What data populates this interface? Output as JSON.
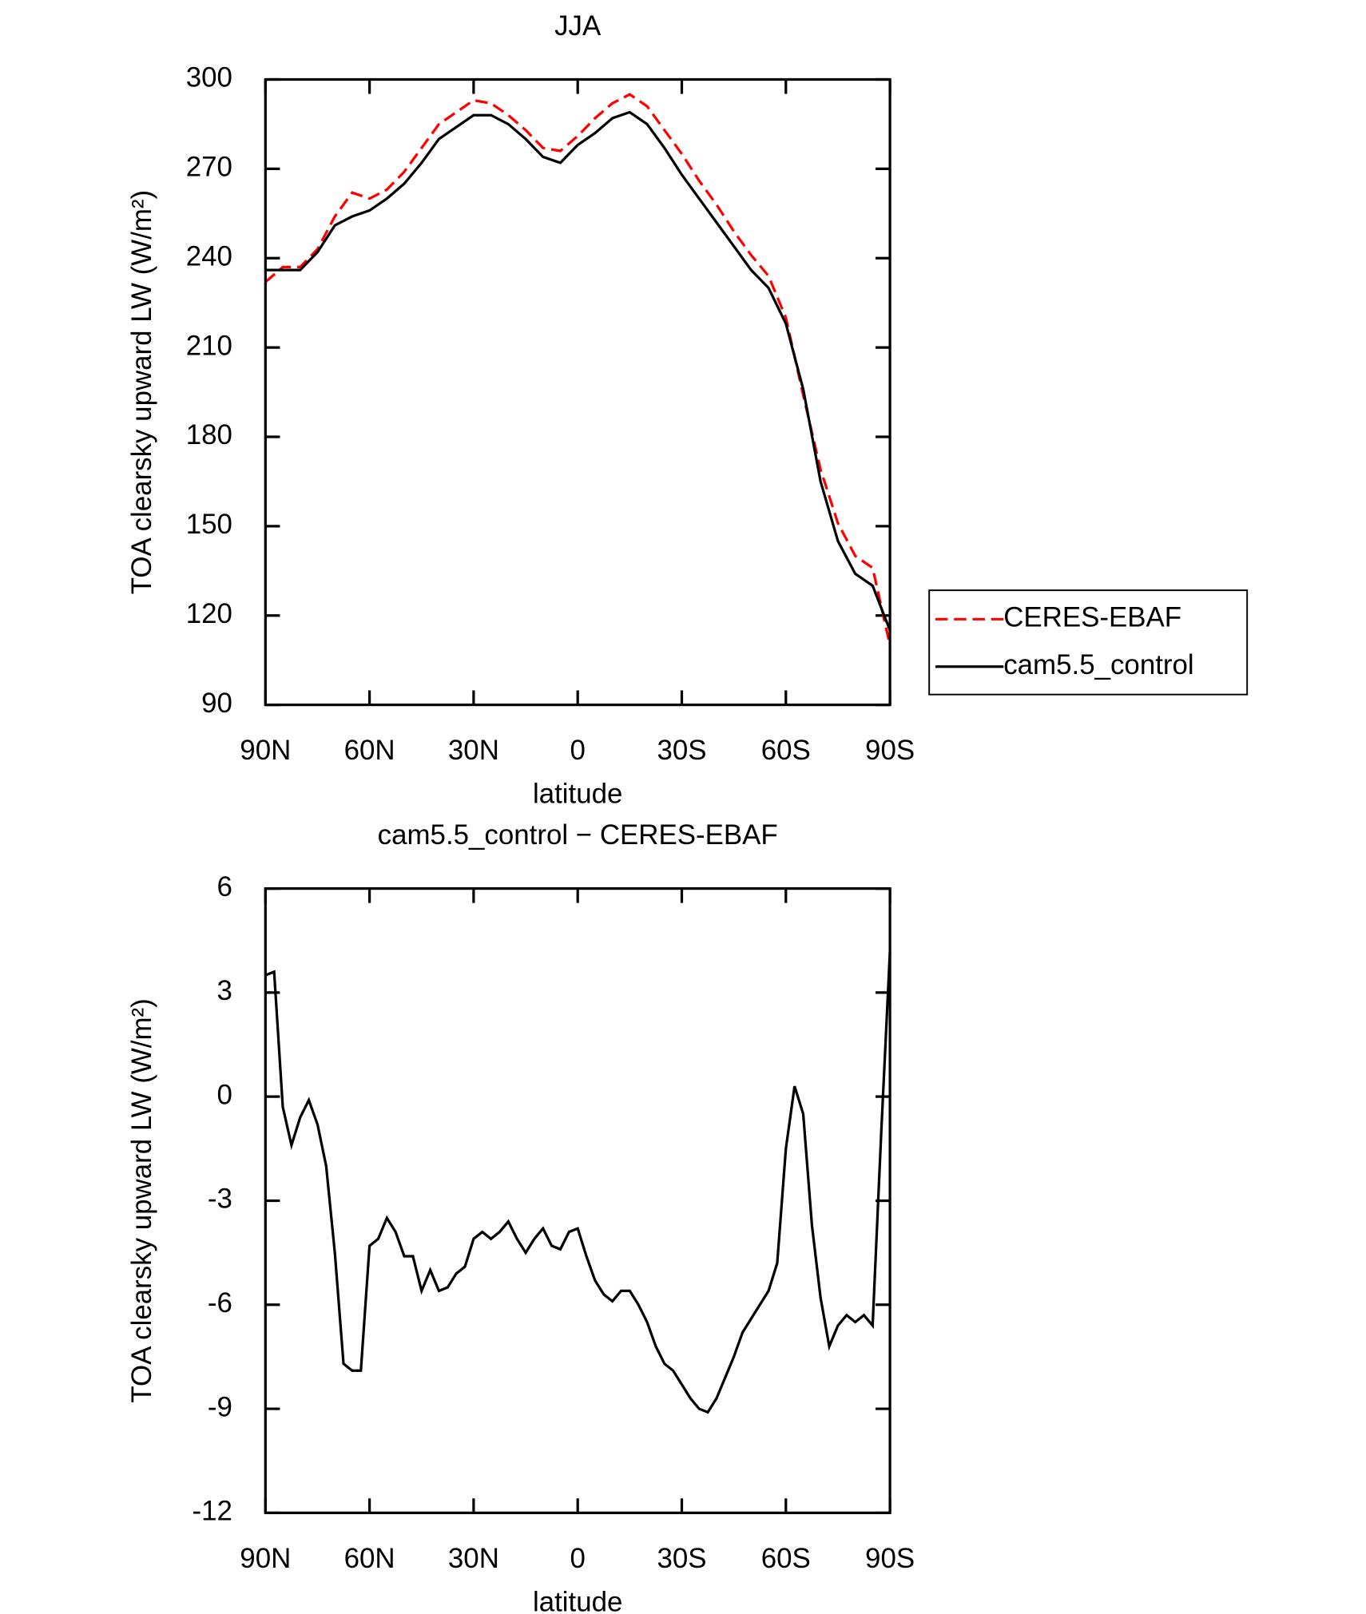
{
  "chart_data": [
    {
      "type": "line",
      "title": "JJA",
      "xlabel": "latitude",
      "ylabel": "TOA clearsky upward LW (W/m²)",
      "x": [
        90,
        85,
        80,
        75,
        70,
        65,
        60,
        55,
        50,
        45,
        40,
        35,
        30,
        25,
        20,
        15,
        10,
        5,
        0,
        -5,
        -10,
        -15,
        -20,
        -25,
        -30,
        -35,
        -40,
        -45,
        -50,
        -55,
        -60,
        -65,
        -70,
        -75,
        -80,
        -85,
        -90
      ],
      "series": [
        {
          "name": "CERES-EBAF",
          "color": "#ff0000",
          "dashed": true,
          "values": [
            232,
            237,
            237,
            243,
            254,
            262,
            260,
            263,
            269,
            277,
            285,
            289,
            293,
            292,
            288,
            283,
            277,
            276,
            281,
            287,
            292,
            295,
            291,
            283,
            275,
            266,
            258,
            249,
            241,
            234,
            220,
            194,
            169,
            151,
            140,
            136,
            110
          ]
        },
        {
          "name": "cam5.5_control",
          "color": "#000000",
          "dashed": false,
          "values": [
            236,
            236,
            236,
            242,
            251,
            254,
            256,
            260,
            265,
            272,
            280,
            284,
            288,
            288,
            285,
            280,
            274,
            272,
            278,
            282,
            287,
            289,
            285,
            277,
            268,
            260,
            252,
            244,
            236,
            230,
            218,
            196,
            165,
            145,
            134,
            130,
            115
          ]
        }
      ],
      "xlim": [
        90,
        -90
      ],
      "xticks": [
        {
          "value": 90,
          "label": "90N"
        },
        {
          "value": 60,
          "label": "60N"
        },
        {
          "value": 30,
          "label": "30N"
        },
        0,
        {
          "value": -30,
          "label": "30S"
        },
        {
          "value": -60,
          "label": "60S"
        },
        {
          "value": -90,
          "label": "90S"
        }
      ],
      "ylim": [
        90,
        300
      ],
      "yticks": [
        90,
        120,
        150,
        180,
        210,
        240,
        270,
        300
      ],
      "legend": "right"
    },
    {
      "type": "line",
      "title": "cam5.5_control − CERES-EBAF",
      "xlabel": "latitude",
      "ylabel": "TOA clearsky upward LW (W/m²)",
      "x": [
        90,
        87.5,
        85,
        82.5,
        80,
        77.5,
        75,
        72.5,
        70,
        67.5,
        65,
        62.5,
        60,
        57.5,
        55,
        52.5,
        50,
        47.5,
        45,
        42.5,
        40,
        37.5,
        35,
        32.5,
        30,
        27.5,
        25,
        22.5,
        20,
        17.5,
        15,
        12.5,
        10,
        7.5,
        5,
        2.5,
        0,
        -2.5,
        -5,
        -7.5,
        -10,
        -12.5,
        -15,
        -17.5,
        -20,
        -22.5,
        -25,
        -27.5,
        -30,
        -32.5,
        -35,
        -37.5,
        -40,
        -42.5,
        -45,
        -47.5,
        -50,
        -52.5,
        -55,
        -57.5,
        -60,
        -62.5,
        -65,
        -67.5,
        -70,
        -72.5,
        -75,
        -77.5,
        -80,
        -82.5,
        -85,
        -87.5,
        -90
      ],
      "color": "#000000",
      "values": [
        3.5,
        3.6,
        -0.3,
        -1.4,
        -0.6,
        -0.1,
        -0.8,
        -2.0,
        -4.5,
        -7.7,
        -7.9,
        -7.9,
        -4.3,
        -4.1,
        -3.5,
        -3.9,
        -4.6,
        -4.6,
        -5.6,
        -5.0,
        -5.6,
        -5.5,
        -5.1,
        -4.9,
        -4.1,
        -3.9,
        -4.1,
        -3.9,
        -3.6,
        -4.1,
        -4.5,
        -4.1,
        -3.8,
        -4.3,
        -4.4,
        -3.9,
        -3.8,
        -4.6,
        -5.3,
        -5.7,
        -5.9,
        -5.6,
        -5.6,
        -6.0,
        -6.5,
        -7.2,
        -7.7,
        -7.9,
        -8.3,
        -8.7,
        -9.0,
        -9.1,
        -8.7,
        -8.1,
        -7.5,
        -6.8,
        -6.4,
        -6.0,
        -5.6,
        -4.8,
        -1.5,
        0.3,
        -0.5,
        -3.7,
        -5.8,
        -7.2,
        -6.6,
        -6.3,
        -6.5,
        -6.3,
        -6.6,
        -1.0,
        4.2
      ],
      "xlim": [
        90,
        -90
      ],
      "xticks": [
        {
          "value": 90,
          "label": "90N"
        },
        {
          "value": 60,
          "label": "60N"
        },
        {
          "value": 30,
          "label": "30N"
        },
        0,
        {
          "value": -30,
          "label": "30S"
        },
        {
          "value": -60,
          "label": "60S"
        },
        {
          "value": -90,
          "label": "90S"
        }
      ],
      "ylim": [
        -12,
        6
      ],
      "yticks": [
        -12,
        -9,
        -6,
        -3,
        0,
        3,
        6
      ]
    }
  ]
}
